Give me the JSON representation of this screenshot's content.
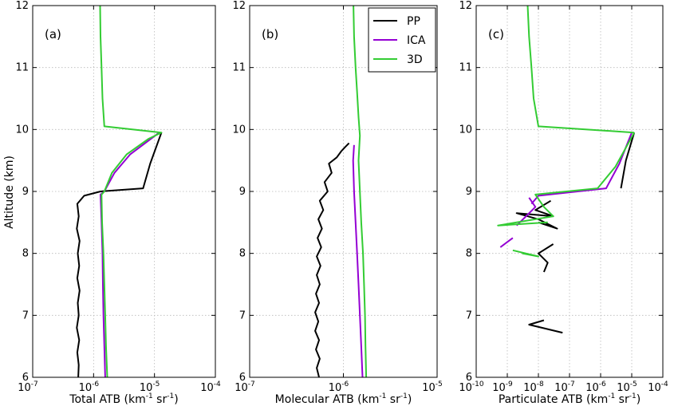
{
  "figure": {
    "ylabel": "Altitude (km)",
    "legend": [
      "PP",
      "ICA",
      "3D"
    ]
  },
  "colors": {
    "PP": "#000000",
    "ICA": "#9400d3",
    "3D": "#33cc33"
  },
  "chart_data": [
    {
      "type": "line",
      "panel_tag": "(a)",
      "xlabel_main": "Total ATB (km",
      "xlabel_sup1": "-1",
      "xlabel_mid": " sr",
      "xlabel_sup2": "-1",
      "xlabel_end": ")",
      "xscale": "log",
      "xlim_exp": [
        -7,
        -4
      ],
      "xtick_exps": [
        -7,
        -6,
        -5,
        -4
      ],
      "xtick_labels": [
        "10",
        "10",
        "10",
        "10"
      ],
      "xtick_sup": [
        "-7",
        "-6",
        "-5",
        "-4"
      ],
      "ylim": [
        6,
        12
      ],
      "yticks": [
        6,
        7,
        8,
        9,
        10,
        11,
        12
      ],
      "ytick_labels": [
        "6",
        "7",
        "8",
        "9",
        "10",
        "11",
        "12"
      ],
      "grid": true,
      "series": [
        {
          "name": "PP",
          "points": [
            [
              5.6e-07,
              6.0
            ],
            [
              5.7e-07,
              6.2
            ],
            [
              5.4e-07,
              6.4
            ],
            [
              5.8e-07,
              6.6
            ],
            [
              5.3e-07,
              6.8
            ],
            [
              5.7e-07,
              7.0
            ],
            [
              5.5e-07,
              7.2
            ],
            [
              5.9e-07,
              7.4
            ],
            [
              5.4e-07,
              7.6
            ],
            [
              5.8e-07,
              7.8
            ],
            [
              5.5e-07,
              8.0
            ],
            [
              5.9e-07,
              8.2
            ],
            [
              5.3e-07,
              8.4
            ],
            [
              5.7e-07,
              8.6
            ],
            [
              5.4e-07,
              8.8
            ],
            [
              7e-07,
              8.93
            ],
            [
              1.3e-06,
              9.0
            ],
            [
              6.5e-06,
              9.05
            ],
            [
              8.5e-06,
              9.45
            ],
            [
              1.3e-05,
              9.95
            ]
          ]
        },
        {
          "name": "ICA",
          "points": [
            [
              1.55e-06,
              6.0
            ],
            [
              1.5e-06,
              6.5
            ],
            [
              1.45e-06,
              7.0
            ],
            [
              1.42e-06,
              7.5
            ],
            [
              1.4e-06,
              8.0
            ],
            [
              1.35e-06,
              8.5
            ],
            [
              1.3e-06,
              8.95
            ],
            [
              1.5e-06,
              9.0
            ],
            [
              2.2e-06,
              9.3
            ],
            [
              4e-06,
              9.6
            ],
            [
              1.2e-05,
              9.95
            ]
          ]
        },
        {
          "name": "3D",
          "points": [
            [
              1.68e-06,
              6.0
            ],
            [
              1.6e-06,
              6.5
            ],
            [
              1.55e-06,
              7.0
            ],
            [
              1.5e-06,
              7.5
            ],
            [
              1.45e-06,
              8.0
            ],
            [
              1.38e-06,
              8.5
            ],
            [
              1.35e-06,
              8.95
            ],
            [
              1.5e-06,
              9.0
            ],
            [
              2e-06,
              9.3
            ],
            [
              3.5e-06,
              9.6
            ],
            [
              8e-06,
              9.85
            ],
            [
              1.3e-05,
              9.95
            ],
            [
              1.5e-06,
              10.05
            ],
            [
              1.4e-06,
              10.5
            ],
            [
              1.35e-06,
              11.0
            ],
            [
              1.3e-06,
              11.5
            ],
            [
              1.28e-06,
              12.0
            ]
          ]
        }
      ]
    },
    {
      "type": "line",
      "panel_tag": "(b)",
      "xlabel_main": "Molecular ATB (km",
      "xlabel_sup1": "-1",
      "xlabel_mid": " sr",
      "xlabel_sup2": "-1",
      "xlabel_end": ")",
      "xscale": "log",
      "xlim_exp": [
        -7,
        -5
      ],
      "xtick_exps": [
        -7,
        -6,
        -5
      ],
      "xtick_labels": [
        "10",
        "10",
        "10"
      ],
      "xtick_sup": [
        "-7",
        "-6",
        "-5"
      ],
      "ylim": [
        6,
        12
      ],
      "yticks": [
        6,
        7,
        8,
        9,
        10,
        11,
        12
      ],
      "ytick_labels": [
        "6",
        "7",
        "8",
        "9",
        "10",
        "11",
        "12"
      ],
      "grid": true,
      "series": [
        {
          "name": "PP",
          "points": [
            [
              5.5e-07,
              6.0
            ],
            [
              5.2e-07,
              6.15
            ],
            [
              5.6e-07,
              6.3
            ],
            [
              5.1e-07,
              6.45
            ],
            [
              5.5e-07,
              6.6
            ],
            [
              5e-07,
              6.75
            ],
            [
              5.4e-07,
              6.9
            ],
            [
              5e-07,
              7.05
            ],
            [
              5.5e-07,
              7.2
            ],
            [
              5.1e-07,
              7.35
            ],
            [
              5.6e-07,
              7.5
            ],
            [
              5.2e-07,
              7.65
            ],
            [
              5.7e-07,
              7.8
            ],
            [
              5.2e-07,
              7.95
            ],
            [
              5.8e-07,
              8.1
            ],
            [
              5.3e-07,
              8.25
            ],
            [
              5.9e-07,
              8.4
            ],
            [
              5.4e-07,
              8.55
            ],
            [
              6.1e-07,
              8.7
            ],
            [
              5.6e-07,
              8.85
            ],
            [
              6.8e-07,
              9.0
            ],
            [
              6.3e-07,
              9.15
            ],
            [
              7.5e-07,
              9.3
            ],
            [
              7e-07,
              9.45
            ],
            [
              8.5e-07,
              9.55
            ],
            [
              9.5e-07,
              9.65
            ],
            [
              1.05e-06,
              9.72
            ],
            [
              1.15e-06,
              9.78
            ]
          ]
        },
        {
          "name": "ICA",
          "points": [
            [
              1.6e-06,
              6.0
            ],
            [
              1.55e-06,
              6.5
            ],
            [
              1.5e-06,
              7.0
            ],
            [
              1.45e-06,
              7.5
            ],
            [
              1.4e-06,
              8.0
            ],
            [
              1.35e-06,
              8.5
            ],
            [
              1.3e-06,
              9.0
            ],
            [
              1.27e-06,
              9.5
            ],
            [
              1.3e-06,
              9.75
            ]
          ]
        },
        {
          "name": "3D",
          "points": [
            [
              1.75e-06,
              6.0
            ],
            [
              1.72e-06,
              6.5
            ],
            [
              1.7e-06,
              7.0
            ],
            [
              1.66e-06,
              7.5
            ],
            [
              1.62e-06,
              8.0
            ],
            [
              1.55e-06,
              8.5
            ],
            [
              1.5e-06,
              9.0
            ],
            [
              1.45e-06,
              9.5
            ],
            [
              1.5e-06,
              9.9
            ],
            [
              1.45e-06,
              10.2
            ],
            [
              1.4e-06,
              10.6
            ],
            [
              1.35e-06,
              11.0
            ],
            [
              1.3e-06,
              11.5
            ],
            [
              1.28e-06,
              12.0
            ]
          ]
        }
      ]
    },
    {
      "type": "line",
      "panel_tag": "(c)",
      "xlabel_main": "Particulate ATB (km",
      "xlabel_sup1": "-1",
      "xlabel_mid": " sr",
      "xlabel_sup2": "-1",
      "xlabel_end": ")",
      "xscale": "log",
      "xlim_exp": [
        -10,
        -4
      ],
      "xtick_exps": [
        -10,
        -9,
        -8,
        -7,
        -6,
        -5,
        -4
      ],
      "xtick_labels": [
        "10",
        "10",
        "10",
        "10",
        "10",
        "10",
        "10"
      ],
      "xtick_sup": [
        "-10",
        "-9",
        "-8",
        "-7",
        "-6",
        "-5",
        "-4"
      ],
      "ylim": [
        6,
        12
      ],
      "yticks": [
        6,
        7,
        8,
        9,
        10,
        11,
        12
      ],
      "ytick_labels": [
        "6",
        "7",
        "8",
        "9",
        "10",
        "11",
        "12"
      ],
      "grid": true,
      "series": [
        {
          "name": "PP",
          "segments": [
            [
              [
                4.5e-06,
                9.05
              ],
              [
                6.5e-06,
                9.5
              ],
              [
                1.2e-05,
                9.95
              ]
            ],
            [
              [
                2.5e-08,
                8.85
              ],
              [
                8e-09,
                8.7
              ],
              [
                3e-08,
                8.6
              ],
              [
                2e-09,
                8.65
              ],
              [
                1e-08,
                8.55
              ],
              [
                4e-08,
                8.4
              ],
              [
                1e-08,
                8.5
              ]
            ],
            [
              [
                3e-08,
                8.15
              ],
              [
                1e-08,
                8.0
              ],
              [
                2e-08,
                7.85
              ],
              [
                1.5e-08,
                7.7
              ]
            ],
            [
              [
                1.5e-08,
                6.92
              ],
              [
                5e-09,
                6.85
              ],
              [
                6e-08,
                6.72
              ]
            ]
          ]
        },
        {
          "name": "ICA",
          "segments": [
            [
              [
                2e-09,
                8.45
              ],
              [
                4e-09,
                8.6
              ],
              [
                8e-09,
                8.75
              ],
              [
                5e-09,
                8.9
              ]
            ],
            [
              [
                6e-10,
                8.1
              ],
              [
                1.5e-09,
                8.25
              ]
            ],
            [
              [
                1e-05,
                9.95
              ],
              [
                4e-06,
                9.45
              ],
              [
                1.5e-06,
                9.05
              ],
              [
                1e-08,
                8.93
              ],
              [
                6e-09,
                8.8
              ]
            ]
          ]
        },
        {
          "name": "3D",
          "segments": [
            [
              [
                1.2e-05,
                9.95
              ],
              [
                1e-08,
                10.05
              ],
              [
                7e-09,
                10.5
              ],
              [
                6e-09,
                11.0
              ],
              [
                5e-09,
                11.5
              ],
              [
                4.5e-09,
                12.0
              ]
            ],
            [
              [
                1.2e-05,
                9.95
              ],
              [
                3e-06,
                9.4
              ],
              [
                8e-07,
                9.05
              ],
              [
                8e-09,
                8.95
              ],
              [
                1.5e-08,
                8.75
              ],
              [
                3e-08,
                8.6
              ],
              [
                5e-10,
                8.45
              ],
              [
                2e-08,
                8.5
              ]
            ],
            [
              [
                1.5e-09,
                8.05
              ],
              [
                1e-08,
                7.95
              ],
              [
                3e-09,
                8.0
              ]
            ]
          ]
        }
      ]
    }
  ]
}
